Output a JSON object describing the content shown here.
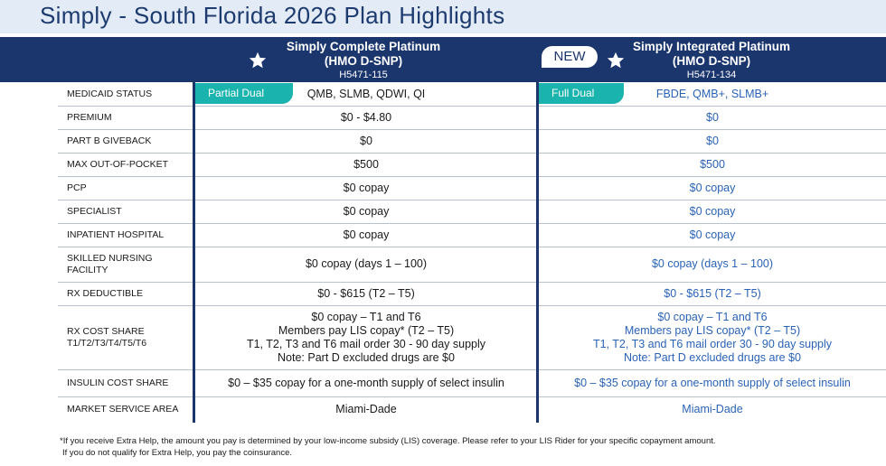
{
  "title": "Simply - South Florida 2026 Plan Highlights",
  "plans": [
    {
      "name_line1": "Simply Complete Platinum",
      "name_line2": "(HMO D-SNP)",
      "id": "H5471-115",
      "badge": ""
    },
    {
      "name_line1": "Simply Integrated Platinum",
      "name_line2": "(HMO D-SNP)",
      "id": "H5471-134",
      "badge": "NEW"
    }
  ],
  "dual_badges": [
    "Partial Dual",
    "Full Dual"
  ],
  "rows": [
    {
      "label": "MEDICAID STATUS",
      "plan1": "QMB, SLMB, QDWI, QI",
      "plan2": "FBDE, QMB+, SLMB+"
    },
    {
      "label": "PREMIUM",
      "plan1": "$0 - $4.80",
      "plan2": "$0"
    },
    {
      "label": "PART B GIVEBACK",
      "plan1": "$0",
      "plan2": "$0"
    },
    {
      "label": "MAX OUT-OF-POCKET",
      "plan1": "$500",
      "plan2": "$500"
    },
    {
      "label": "PCP",
      "plan1": "$0 copay",
      "plan2": "$0 copay"
    },
    {
      "label": "SPECIALIST",
      "plan1": "$0 copay",
      "plan2": "$0 copay"
    },
    {
      "label": "INPATIENT HOSPITAL",
      "plan1": "$0 copay",
      "plan2": "$0 copay"
    },
    {
      "label": "SKILLED NURSING FACILITY",
      "plan1": "$0 copay (days 1 – 100)",
      "plan2": "$0 copay (days 1 – 100)"
    },
    {
      "label": "RX DEDUCTIBLE",
      "plan1": "$0 - $615 (T2 – T5)",
      "plan2": "$0 - $615 (T2 – T5)"
    },
    {
      "label": "RX COST SHARE T1/T2/T3/T4/T5/T6",
      "plan1_lines": [
        "$0 copay – T1 and T6",
        "Members pay LIS copay* (T2 – T5)",
        "T1, T2, T3 and T6 mail order 30 - 90 day supply",
        "Note: Part D excluded drugs are $0"
      ],
      "plan2_lines": [
        "$0 copay – T1 and T6",
        "Members pay LIS copay* (T2 – T5)",
        "T1, T2, T3 and T6 mail order 30 - 90 day supply",
        "Note: Part D excluded drugs are $0"
      ]
    },
    {
      "label": "INSULIN COST SHARE",
      "plan1": "$0 – $35 copay for a one-month supply of select insulin",
      "plan2": "$0 – $35 copay for a one-month supply of select insulin"
    },
    {
      "label": "MARKET SERVICE AREA",
      "plan1": "Miami-Dade",
      "plan2": "Miami-Dade"
    }
  ],
  "footnote_lines": [
    "*If you receive Extra Help, the amount you pay is determined by your low-income subsidy (LIS) coverage. Please refer to your LIS Rider for your specific copayment amount.",
    "If you do not qualify for Extra Help, you pay the coinsurance."
  ],
  "colors": {
    "navy": "#1b356d",
    "teal": "#1bb3ae",
    "blue_text": "#2a63b5",
    "title_bg": "#e2ebf6"
  }
}
